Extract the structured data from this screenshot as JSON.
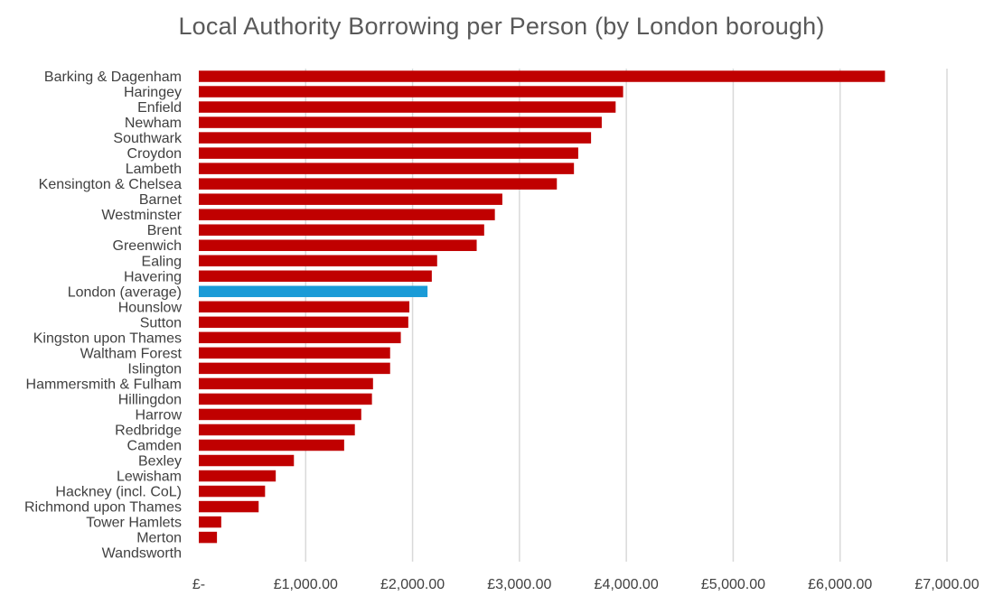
{
  "chart_data": {
    "type": "bar",
    "orientation": "horizontal",
    "title": "Local Authority Borrowing per Person (by London borough)",
    "xlabel": "",
    "ylabel": "",
    "xlim": [
      0,
      7000
    ],
    "grid": true,
    "legend": "none",
    "categories": [
      "Barking & Dagenham",
      "Haringey",
      "Enfield",
      "Newham",
      "Southwark",
      "Croydon",
      "Lambeth",
      "Kensington & Chelsea",
      "Barnet",
      "Westminster",
      "Brent",
      "Greenwich",
      "Ealing",
      "Havering",
      "London (average)",
      "Hounslow",
      "Sutton",
      "Kingston upon Thames",
      "Waltham Forest",
      "Islington",
      "Hammersmith & Fulham",
      "Hillingdon",
      "Harrow",
      "Redbridge",
      "Camden",
      "Bexley",
      "Lewisham",
      "Hackney (incl. CoL)",
      "Richmond upon Thames",
      "Tower Hamlets",
      "Merton",
      "Wandsworth"
    ],
    "values": [
      6420,
      3970,
      3900,
      3770,
      3670,
      3550,
      3510,
      3350,
      2840,
      2770,
      2670,
      2600,
      2230,
      2180,
      2140,
      1970,
      1960,
      1890,
      1790,
      1790,
      1630,
      1620,
      1520,
      1460,
      1360,
      890,
      720,
      620,
      560,
      210,
      170,
      0
    ],
    "highlight_category": "London (average)",
    "x_ticks": [
      0,
      1000,
      2000,
      3000,
      4000,
      5000,
      6000,
      7000
    ],
    "x_tick_labels": [
      "£-",
      "£1,000.00",
      "£2,000.00",
      "£3,000.00",
      "£4,000.00",
      "£5,000.00",
      "£6,000.00",
      "£7,000.00"
    ],
    "colors": {
      "bar": "#c00000",
      "highlight": "#1a9bd7",
      "grid": "#d9d9d9",
      "text": "#404040",
      "title": "#595959"
    }
  }
}
